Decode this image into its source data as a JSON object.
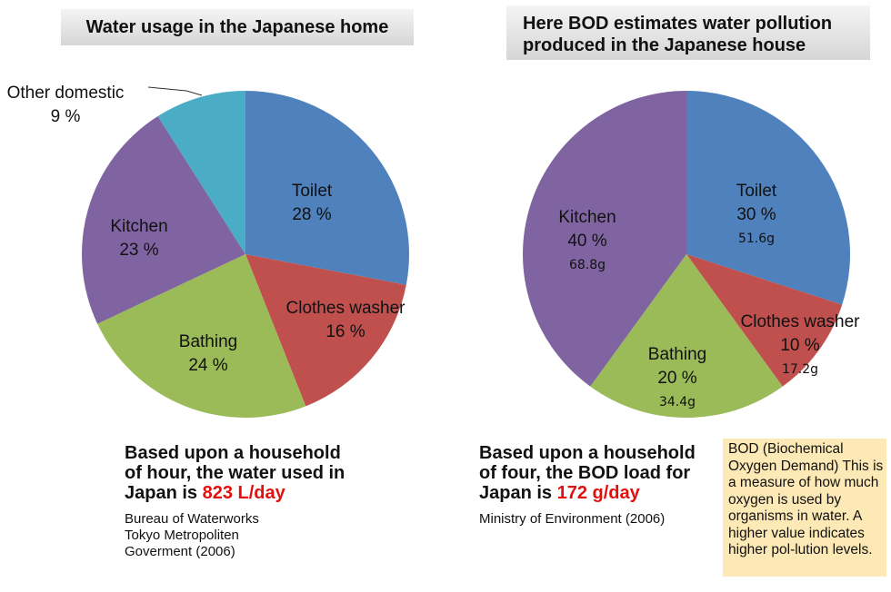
{
  "chart_data": [
    {
      "type": "pie",
      "title": "Water usage in the Japanese home",
      "slices": [
        {
          "label": "Toilet",
          "value": 28,
          "display": "28 %",
          "color": "#4f81bd"
        },
        {
          "label": "Clothes washer",
          "value": 16,
          "display": "16 %",
          "color": "#c0504d"
        },
        {
          "label": "Bathing",
          "value": 24,
          "display": "24 %",
          "color": "#9bbb59"
        },
        {
          "label": "Kitchen",
          "value": 23,
          "display": "23 %",
          "color": "#8064a2"
        },
        {
          "label": "Other domestic",
          "value": 9,
          "display": "9 %",
          "color": "#4bacc6"
        }
      ],
      "summary": {
        "line1": "Based upon a household",
        "line2": "of hour, the water used in",
        "line3": "Japan is ",
        "highlight": "823 L/day"
      },
      "source": "Bureau of Waterworks\nTokyo Metropoliten\nGoverment (2006)"
    },
    {
      "type": "pie",
      "title": "Here BOD estimates water pollution produced in the Japanese house",
      "slices": [
        {
          "label": "Toilet",
          "value": 30,
          "display": "30 %",
          "grams": "51.6g",
          "color": "#4f81bd"
        },
        {
          "label": "Clothes washer",
          "value": 10,
          "display": "10 %",
          "grams": "17.2g",
          "color": "#c0504d"
        },
        {
          "label": "Bathing",
          "value": 20,
          "display": "20 %",
          "grams": "34.4g",
          "color": "#9bbb59"
        },
        {
          "label": "Kitchen",
          "value": 40,
          "display": "40 %",
          "grams": "68.8g",
          "color": "#8064a2"
        }
      ],
      "summary": {
        "line1": "Based upon a household",
        "line2": "of four, the BOD load for",
        "line3": "Japan is ",
        "highlight": "172 g/day"
      },
      "source": "Ministry of Environment (2006)"
    }
  ],
  "note": "BOD (Biochemical Oxygen Demand) This is a measure of how much oxygen is used by organisms in water. A higher value indicates higher pol-lution levels."
}
